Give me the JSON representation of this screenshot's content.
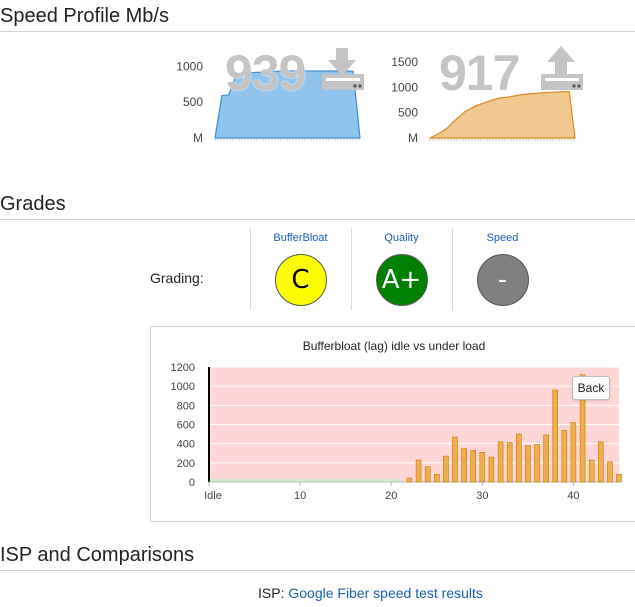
{
  "sections": {
    "speed_title": "Speed Profile Mb/s",
    "grades_title": "Grades",
    "isp_title": "ISP and Comparisons"
  },
  "download": {
    "value": "939",
    "icon": "download-icon",
    "yticks": [
      "1000",
      "500",
      "M"
    ],
    "color": "#8ec4ee",
    "line_color": "#3d8fd6"
  },
  "upload": {
    "value": "917",
    "icon": "upload-icon",
    "yticks": [
      "1500",
      "1000",
      "500",
      "M"
    ],
    "color": "#f0c890",
    "line_color": "#d98c20"
  },
  "grades": {
    "label": "Grading:",
    "items": [
      {
        "heading": "BufferBloat",
        "grade": "C",
        "color": "#ffff00",
        "text_color": "#000000"
      },
      {
        "heading": "Quality",
        "grade": "A+",
        "color": "#008000",
        "text_color": "#ffffff"
      },
      {
        "heading": "Speed",
        "grade": "-",
        "color": "#808080",
        "text_color": "#ffffff"
      }
    ]
  },
  "bufferbloat": {
    "back_label": "Back"
  },
  "chart_data": [
    {
      "type": "area",
      "title": "",
      "y_max": 1200,
      "ytick_values": [
        1000,
        500,
        0
      ],
      "values": [
        0,
        590,
        600,
        870,
        900,
        910,
        915,
        920,
        925,
        930,
        935,
        935,
        935,
        935,
        935,
        935,
        935,
        935,
        935,
        935,
        930,
        0
      ]
    },
    {
      "type": "area",
      "title": "",
      "y_max": 1700,
      "ytick_values": [
        1500,
        1000,
        500,
        0
      ],
      "values": [
        0,
        60,
        120,
        200,
        320,
        420,
        520,
        580,
        640,
        680,
        720,
        760,
        790,
        800,
        820,
        840,
        860,
        870,
        880,
        890,
        900,
        905,
        910,
        915,
        917,
        0
      ]
    },
    {
      "type": "bar",
      "title": "Bufferbloat (lag) idle vs under load",
      "xlabel": "",
      "ylabel": "",
      "ylim": [
        0,
        1200
      ],
      "yticks": [
        0,
        200,
        400,
        600,
        800,
        1000,
        1200
      ],
      "xticks": [
        "Idle",
        "10",
        "20",
        "30",
        "40"
      ],
      "xtick_values": [
        0,
        10,
        20,
        30,
        40
      ],
      "x_max": 45,
      "idle_value": 30,
      "series": [
        {
          "x": [
            22,
            23,
            24,
            25,
            26,
            27,
            28,
            29,
            30,
            31,
            32,
            33,
            34,
            35,
            36,
            37,
            38,
            39,
            40,
            41,
            42,
            43,
            44,
            45
          ],
          "values": [
            40,
            230,
            160,
            80,
            270,
            470,
            350,
            330,
            310,
            260,
            420,
            410,
            500,
            380,
            390,
            490,
            960,
            540,
            620,
            1120,
            230,
            420,
            210,
            80
          ]
        }
      ],
      "bar_color": "#f0ad4e",
      "bar_edge": "#c77c00",
      "background": "#ffd6d6",
      "idle_color": "#c9efc9"
    }
  ],
  "isp": {
    "label": "ISP:",
    "link_text": "Google Fiber speed test results"
  }
}
